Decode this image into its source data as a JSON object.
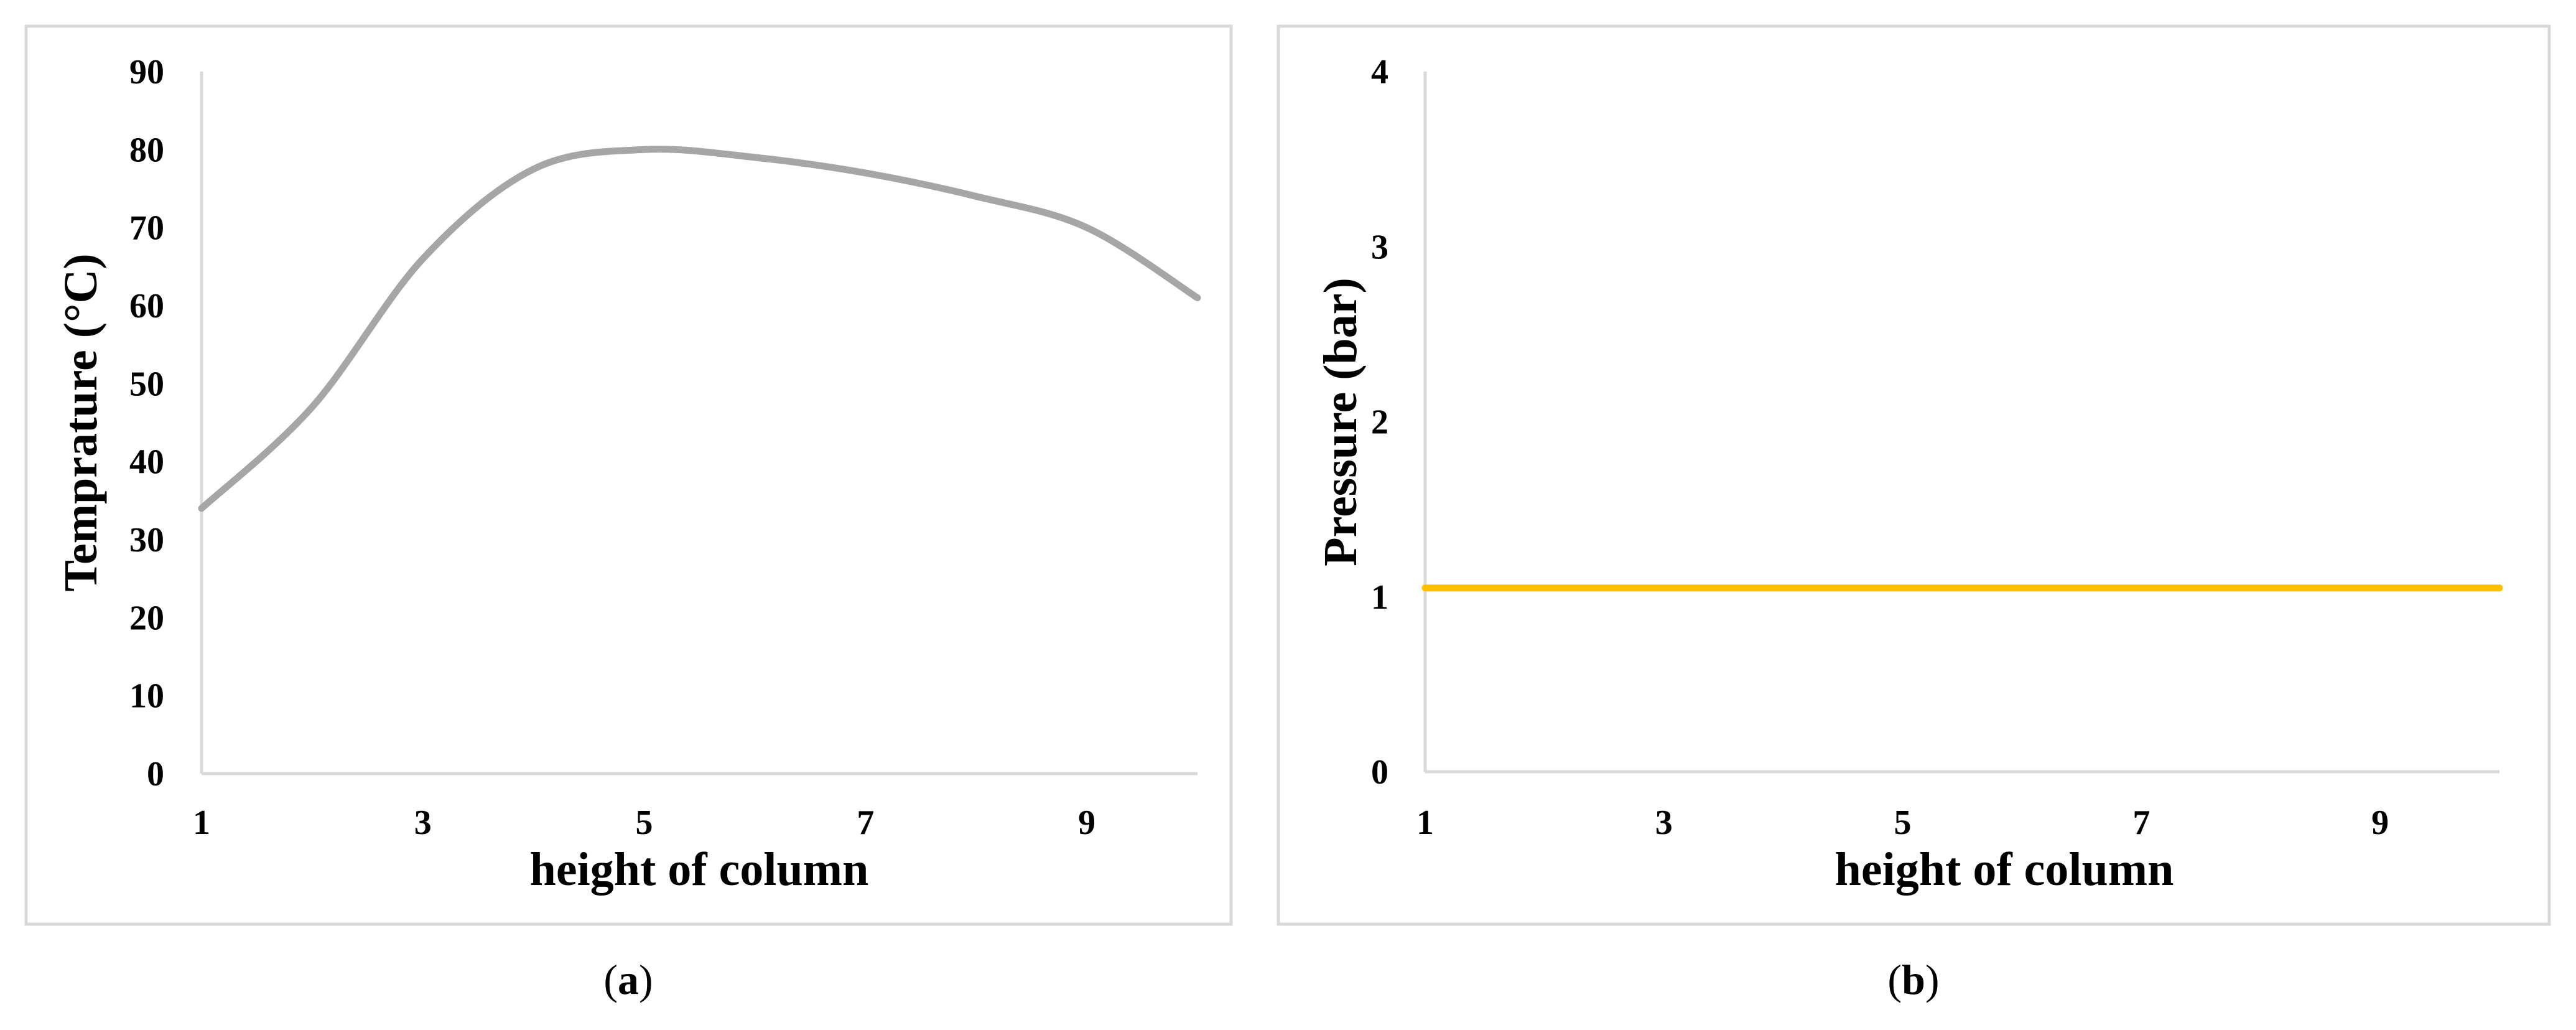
{
  "chart_data": [
    {
      "type": "line",
      "panel_label": "a",
      "xlabel": "height of column",
      "ylabel": "Temprature (°C)",
      "xlim": [
        1,
        10
      ],
      "ylim": [
        0,
        90
      ],
      "xticks": [
        "1",
        "3",
        "5",
        "7",
        "9"
      ],
      "yticks": [
        "0",
        "10",
        "20",
        "30",
        "40",
        "50",
        "60",
        "70",
        "80",
        "90"
      ],
      "grid": false,
      "legend": "none",
      "series": [
        {
          "color": "#a6a6a6",
          "x": [
            1,
            2,
            3,
            4,
            5,
            6,
            7,
            8,
            9,
            10
          ],
          "y": [
            34,
            47,
            66,
            77.5,
            80,
            79,
            77,
            74,
            70,
            61
          ]
        }
      ]
    },
    {
      "type": "line",
      "panel_label": "b",
      "xlabel": "height of column",
      "ylabel": "Pressure (bar)",
      "xlim": [
        1,
        10
      ],
      "ylim": [
        0,
        4
      ],
      "xticks": [
        "1",
        "3",
        "5",
        "7",
        "9"
      ],
      "yticks": [
        "0",
        "1",
        "2",
        "3",
        "4"
      ],
      "grid": false,
      "legend": "none",
      "series": [
        {
          "color": "#ffc000",
          "x": [
            1,
            2,
            3,
            4,
            5,
            6,
            7,
            8,
            9,
            10
          ],
          "y": [
            1.05,
            1.05,
            1.05,
            1.05,
            1.05,
            1.05,
            1.05,
            1.05,
            1.05,
            1.05
          ]
        }
      ]
    }
  ]
}
